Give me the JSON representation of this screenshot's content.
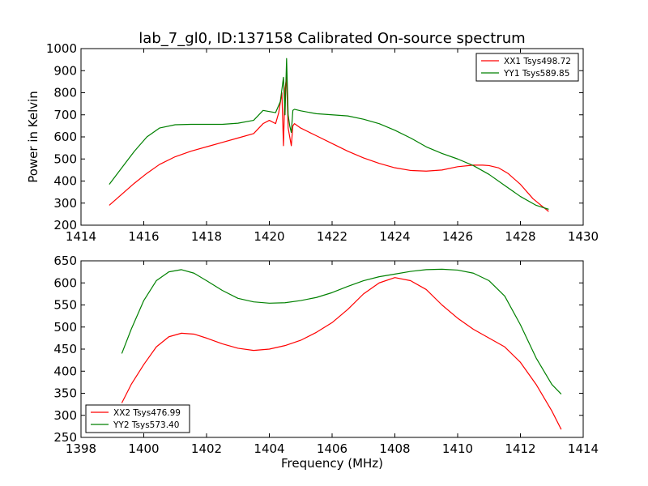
{
  "title": "lab_7_gl0, ID:137158 Calibrated On-source spectrum",
  "colors": {
    "xx": "#ff0000",
    "yy": "#008000",
    "frame": "#000000"
  },
  "chart_data": [
    {
      "type": "line",
      "ylabel": "Power in Kelvin",
      "xlabel": "",
      "xlim": [
        1414,
        1430
      ],
      "ylim": [
        200,
        1000
      ],
      "xticks": [
        1414,
        1416,
        1418,
        1420,
        1422,
        1424,
        1426,
        1428,
        1430
      ],
      "yticks": [
        200,
        300,
        400,
        500,
        600,
        700,
        800,
        900,
        1000
      ],
      "legend_position": "top-right",
      "series": [
        {
          "name": "XX1 Tsys498.72",
          "color": "#ff0000",
          "x": [
            1414.9,
            1415.3,
            1415.7,
            1416.1,
            1416.5,
            1417.0,
            1417.5,
            1418.0,
            1418.5,
            1419.0,
            1419.5,
            1419.8,
            1420.0,
            1420.2,
            1420.3,
            1420.4,
            1420.45,
            1420.5,
            1420.55,
            1420.6,
            1420.65,
            1420.7,
            1420.75,
            1420.8,
            1421.0,
            1421.5,
            1422.0,
            1422.5,
            1423.0,
            1423.5,
            1424.0,
            1424.5,
            1425.0,
            1425.5,
            1426.0,
            1426.5,
            1426.8,
            1427.0,
            1427.3,
            1427.6,
            1428.0,
            1428.4,
            1428.7,
            1428.9
          ],
          "y": [
            290,
            340,
            390,
            435,
            475,
            510,
            535,
            555,
            575,
            595,
            615,
            660,
            675,
            660,
            710,
            800,
            560,
            820,
            870,
            640,
            600,
            560,
            650,
            660,
            640,
            605,
            570,
            535,
            505,
            480,
            460,
            448,
            445,
            450,
            465,
            472,
            472,
            470,
            460,
            435,
            385,
            320,
            285,
            262
          ]
        },
        {
          "name": "YY1 Tsys589.85",
          "color": "#008000",
          "x": [
            1414.9,
            1415.3,
            1415.7,
            1416.1,
            1416.5,
            1417.0,
            1417.5,
            1418.0,
            1418.5,
            1419.0,
            1419.5,
            1419.8,
            1420.0,
            1420.2,
            1420.35,
            1420.45,
            1420.5,
            1420.55,
            1420.6,
            1420.65,
            1420.7,
            1420.75,
            1420.8,
            1421.0,
            1421.5,
            1422.0,
            1422.5,
            1423.0,
            1423.5,
            1424.0,
            1424.5,
            1425.0,
            1425.5,
            1426.0,
            1426.5,
            1427.0,
            1427.5,
            1428.0,
            1428.5,
            1428.9
          ],
          "y": [
            385,
            460,
            535,
            600,
            640,
            655,
            657,
            657,
            657,
            662,
            675,
            720,
            715,
            710,
            760,
            870,
            700,
            955,
            700,
            650,
            620,
            720,
            725,
            718,
            705,
            700,
            695,
            680,
            660,
            630,
            595,
            555,
            525,
            500,
            470,
            430,
            380,
            330,
            290,
            272
          ]
        }
      ]
    },
    {
      "type": "line",
      "ylabel": "",
      "xlabel": "Frequency (MHz)",
      "xlim": [
        1398,
        1414
      ],
      "ylim": [
        250,
        650
      ],
      "xticks": [
        1398,
        1400,
        1402,
        1404,
        1406,
        1408,
        1410,
        1412,
        1414
      ],
      "yticks": [
        250,
        300,
        350,
        400,
        450,
        500,
        550,
        600,
        650
      ],
      "legend_position": "bottom-left",
      "series": [
        {
          "name": "XX2 Tsys476.99",
          "color": "#ff0000",
          "x": [
            1399.3,
            1399.6,
            1400.0,
            1400.4,
            1400.8,
            1401.2,
            1401.6,
            1402.0,
            1402.5,
            1403.0,
            1403.5,
            1404.0,
            1404.5,
            1405.0,
            1405.5,
            1406.0,
            1406.5,
            1407.0,
            1407.5,
            1408.0,
            1408.5,
            1409.0,
            1409.5,
            1410.0,
            1410.5,
            1411.0,
            1411.5,
            1412.0,
            1412.5,
            1413.0,
            1413.3
          ],
          "y": [
            328,
            370,
            415,
            455,
            478,
            486,
            484,
            475,
            462,
            452,
            447,
            450,
            458,
            470,
            488,
            510,
            540,
            575,
            600,
            612,
            605,
            585,
            550,
            520,
            495,
            475,
            455,
            420,
            370,
            310,
            268
          ]
        },
        {
          "name": "YY2 Tsys573.40",
          "color": "#008000",
          "x": [
            1399.3,
            1399.6,
            1400.0,
            1400.4,
            1400.8,
            1401.2,
            1401.6,
            1402.0,
            1402.5,
            1403.0,
            1403.5,
            1404.0,
            1404.5,
            1405.0,
            1405.5,
            1406.0,
            1406.5,
            1407.0,
            1407.5,
            1408.0,
            1408.5,
            1409.0,
            1409.5,
            1410.0,
            1410.5,
            1411.0,
            1411.5,
            1412.0,
            1412.5,
            1413.0,
            1413.3
          ],
          "y": [
            440,
            495,
            560,
            605,
            625,
            630,
            622,
            605,
            583,
            565,
            557,
            554,
            555,
            560,
            567,
            578,
            592,
            605,
            614,
            620,
            626,
            630,
            631,
            629,
            622,
            605,
            570,
            505,
            430,
            370,
            348
          ]
        }
      ]
    }
  ]
}
